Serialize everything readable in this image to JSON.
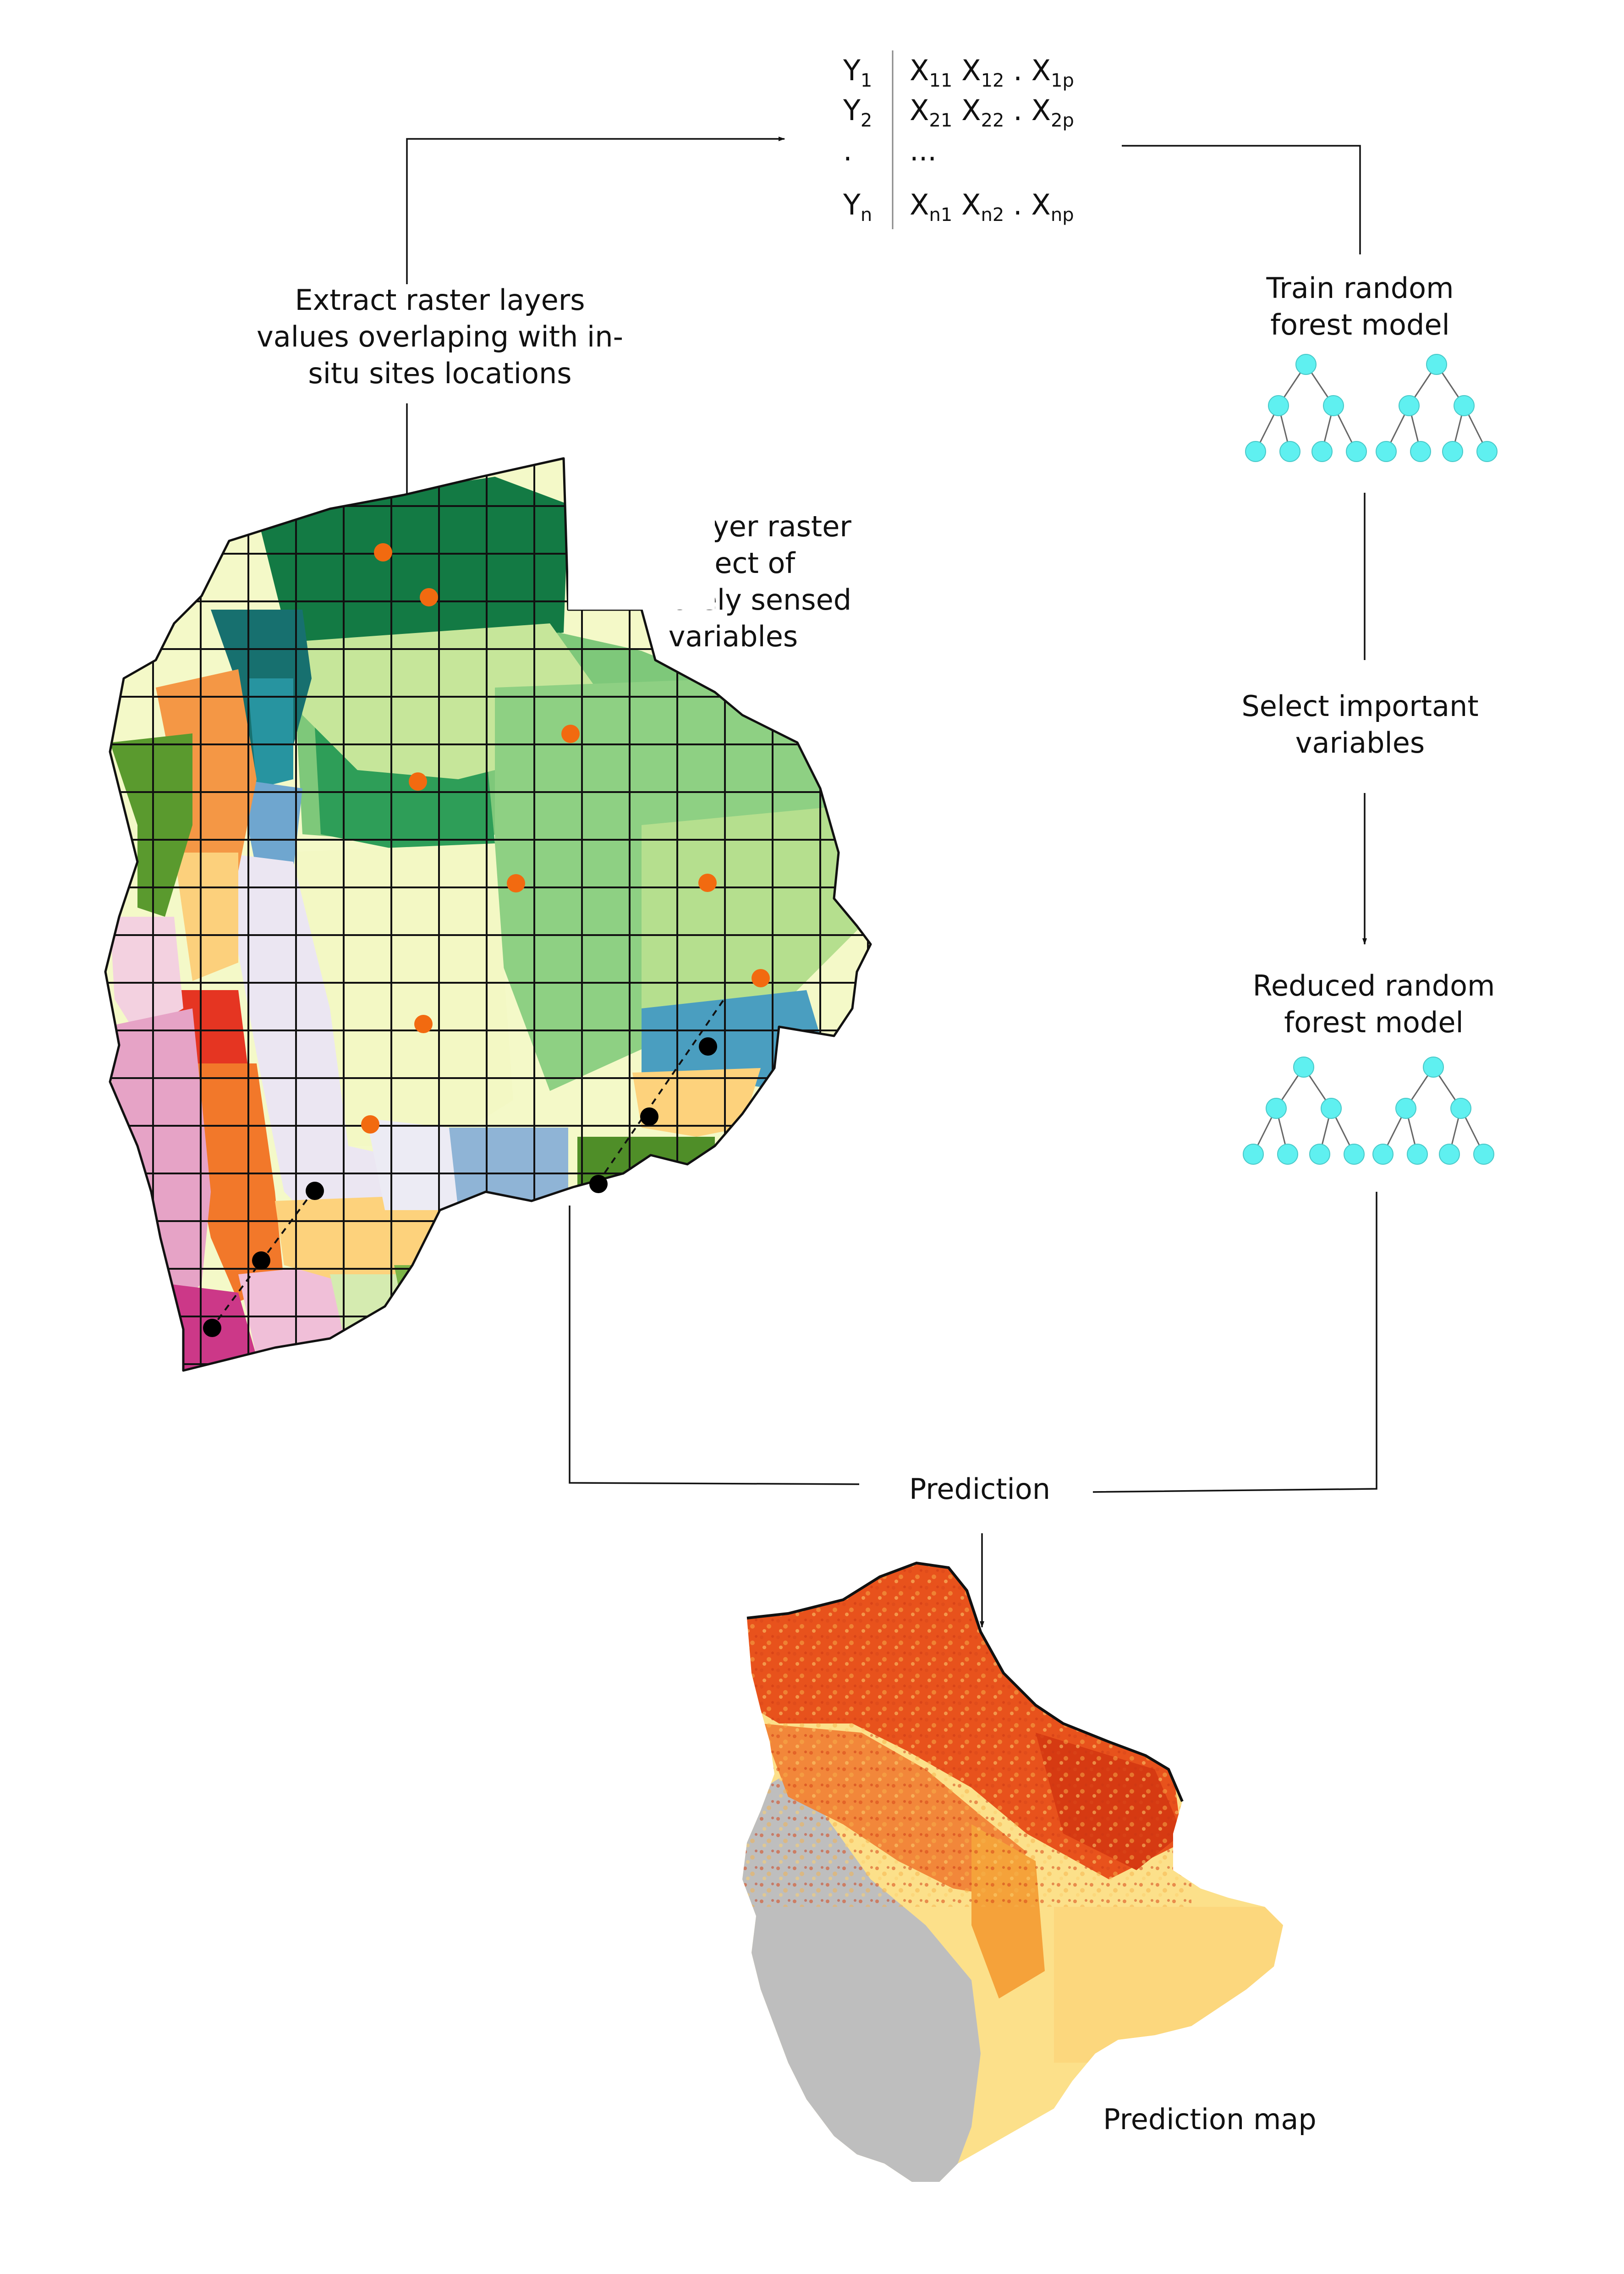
{
  "labels": {
    "extract_1": "Extract raster layers",
    "extract_2": "values overlaping with in-",
    "extract_3": "situ sites locations",
    "multilayer_1": "Muti-layer raster",
    "multilayer_2": "object of",
    "multilayer_3": "remotely sensed",
    "multilayer_4": "variables",
    "train_1": "Train random",
    "train_2": "forest model",
    "select_1": "Select important",
    "select_2": "variables",
    "reduced_1": "Reduced random",
    "reduced_2": "forest model",
    "prediction": "Prediction",
    "prediction_map": "Prediction map"
  },
  "matrix": {
    "rows": [
      {
        "y": "Y",
        "y_sub": "1",
        "x1": "X",
        "x1_sub": "11",
        "x2": "X",
        "x2_sub": "12",
        "dot": ".",
        "xp": "X",
        "xp_sub": "1p"
      },
      {
        "y": "Y",
        "y_sub": "2",
        "x1": "X",
        "x1_sub": "21",
        "x2": "X",
        "x2_sub": "22",
        "dot": ".",
        "xp": "X",
        "xp_sub": "2p"
      },
      {
        "y": ".",
        "ellipsis": "..."
      },
      {
        "y": "Y",
        "y_sub": "n",
        "x1": "X",
        "x1_sub": "n1",
        "x2": "X",
        "x2_sub": "n2",
        "dot": ".",
        "xp": "X",
        "xp_sub": "np"
      }
    ]
  },
  "colors": {
    "node": "#5ff0f0",
    "site_orange": "#f26a10",
    "site_black": "#000000",
    "no_data": "#bebebe",
    "pred_high": "#e8521c",
    "pred_mid": "#f5a23a",
    "pred_low": "#fce08a"
  },
  "icons": {
    "tree": "binary-decision-tree",
    "arrow": "arrowhead"
  }
}
